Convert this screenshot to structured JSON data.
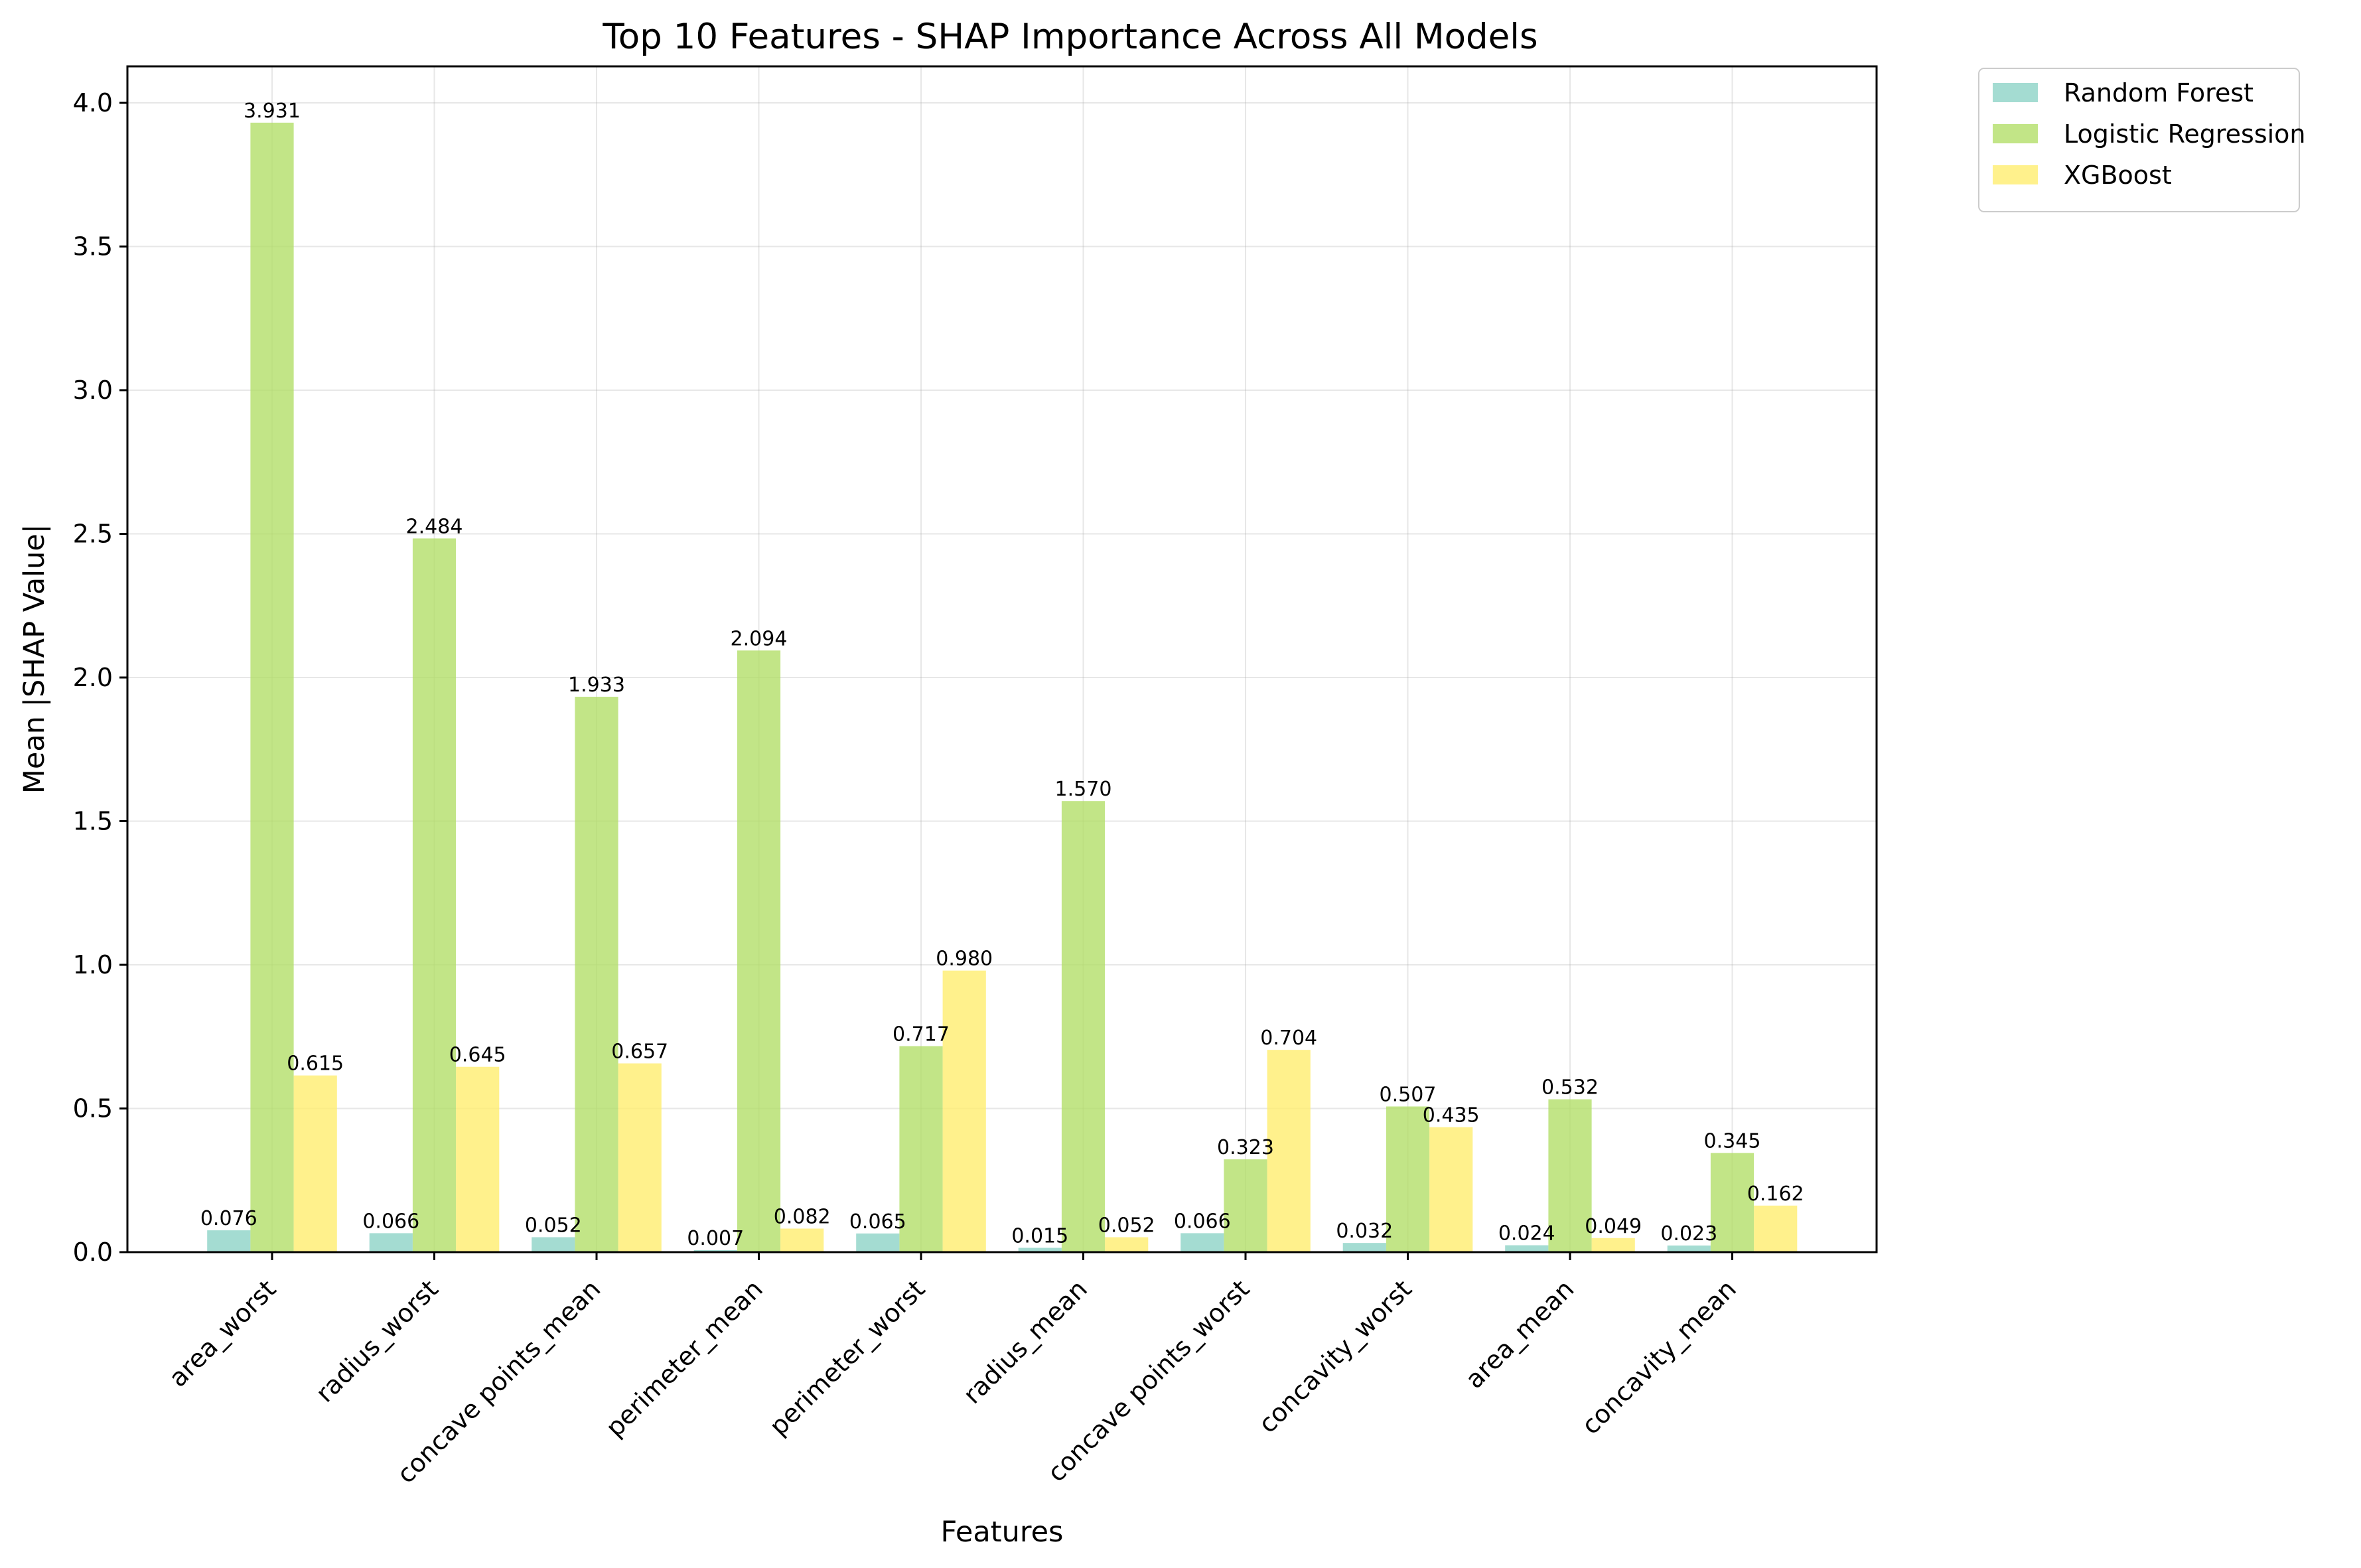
{
  "chart_data": {
    "type": "bar",
    "title": "Top 10 Features - SHAP Importance Across All Models",
    "xlabel": "Features",
    "ylabel": "Mean |SHAP Value|",
    "ylim": [
      0,
      4.127
    ],
    "yticks": [
      "0.0",
      "0.5",
      "1.0",
      "1.5",
      "2.0",
      "2.5",
      "3.0",
      "3.5",
      "4.0"
    ],
    "grid": true,
    "legend_position": "outside-top-right",
    "categories": [
      "area_worst",
      "radius_worst",
      "concave points_mean",
      "perimeter_mean",
      "perimeter_worst",
      "radius_mean",
      "concave points_worst",
      "concavity_worst",
      "area_mean",
      "concavity_mean"
    ],
    "series": [
      {
        "name": "Random Forest",
        "color": "#8dd3c7",
        "values": [
          0.076,
          0.066,
          0.052,
          0.007,
          0.065,
          0.015,
          0.066,
          0.032,
          0.024,
          0.023
        ],
        "labels": [
          "0.076",
          "0.066",
          "0.052",
          "0.007",
          "0.065",
          "0.015",
          "0.066",
          "0.032",
          "0.024",
          "0.023"
        ]
      },
      {
        "name": "Logistic Regression",
        "color": "#b3de69",
        "values": [
          3.931,
          2.484,
          1.933,
          2.094,
          0.717,
          1.57,
          0.323,
          0.507,
          0.532,
          0.345
        ],
        "labels": [
          "3.931",
          "2.484",
          "1.933",
          "2.094",
          "0.717",
          "1.570",
          "0.323",
          "0.507",
          "0.532",
          "0.345"
        ]
      },
      {
        "name": "XGBoost",
        "color": "#ffed6f",
        "values": [
          0.615,
          0.645,
          0.657,
          0.082,
          0.98,
          0.052,
          0.704,
          0.435,
          0.049,
          0.162
        ],
        "labels": [
          "0.615",
          "0.645",
          "0.657",
          "0.082",
          "0.980",
          "0.052",
          "0.704",
          "0.435",
          "0.049",
          "0.162"
        ]
      }
    ]
  }
}
